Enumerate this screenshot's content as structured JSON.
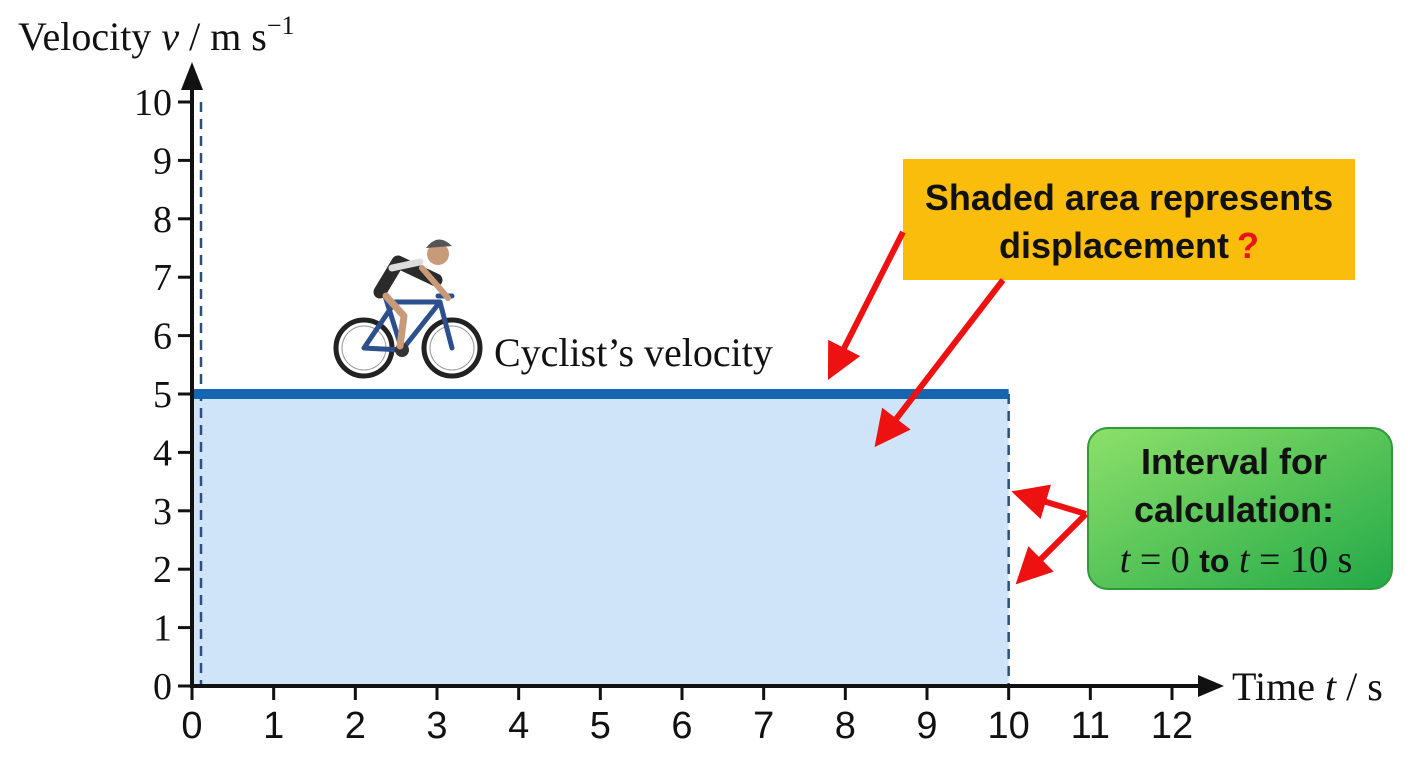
{
  "chart_data": {
    "type": "area",
    "title": "",
    "ylabel_prefix": "Velocity ",
    "ylabel_var": "v",
    "ylabel_unit": " / m s",
    "ylabel_exp": "−1",
    "xlabel_prefix": "Time ",
    "xlabel_var": "t",
    "xlabel_unit": " / s",
    "xlim": [
      0,
      12
    ],
    "ylim": [
      0,
      10
    ],
    "x_ticks": [
      0,
      1,
      2,
      3,
      4,
      5,
      6,
      7,
      8,
      9,
      10,
      11,
      12
    ],
    "y_ticks": [
      0,
      1,
      2,
      3,
      4,
      5,
      6,
      7,
      8,
      9,
      10
    ],
    "grid": false,
    "series": [
      {
        "name": "Cyclist’s velocity",
        "x": [
          0,
          10
        ],
        "y": [
          5,
          5
        ]
      }
    ],
    "shaded_region": {
      "x_start": 0,
      "x_end": 10,
      "y": 5
    },
    "annotations": {
      "line_label": "Cyclist’s velocity",
      "shaded_callout_line1": "Shaded area represents",
      "shaded_callout_line2": "displacement",
      "shaded_callout_mark": "?",
      "interval_line1": "Interval for",
      "interval_line2": "calculation:",
      "interval_t1": "t",
      "interval_eq1": " = 0 ",
      "interval_to": "to",
      "interval_t2": " t",
      "interval_eq2": " = 10 s"
    },
    "colors": {
      "line": "#1565b0",
      "fill": "#cfe3f9",
      "arrow": "#ee1111",
      "callout_orange": "#fbbd0c",
      "callout_green": "#4cc14a",
      "question_mark": "#e8141a"
    }
  }
}
